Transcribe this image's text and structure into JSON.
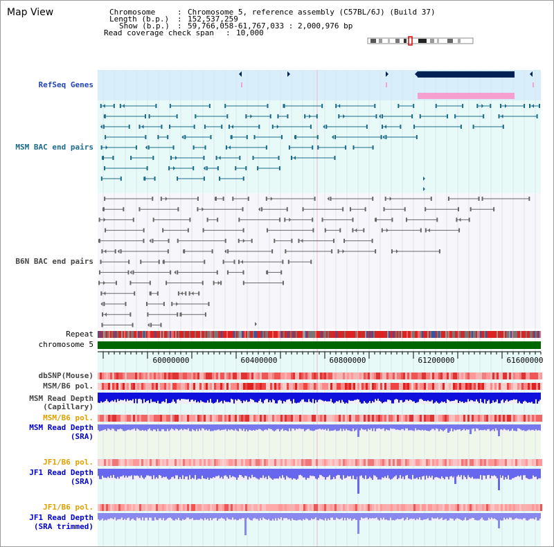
{
  "title": "Map View",
  "header": {
    "chromosome_key": "Chromosome",
    "chromosome_val": "Chromosome 5, reference assembly (C57BL/6J) (Build 37)",
    "length_key": "Length (b.p.)",
    "length_val": "152,537,259",
    "show_key": "Show (b.p.)",
    "show_val": "59,766,058-61,767,033 : 2,000,976 bp",
    "coverage_key": "Read coverage check span",
    "coverage_val": "10,000"
  },
  "tracks": {
    "refseq": "RefSeq Genes",
    "msm_bac": "MSM BAC end pairs",
    "b6n_bac": "B6N BAC end pairs",
    "repeat": "Repeat",
    "chromosome": "chromosome 5",
    "dbsnp": "dbSNP(Mouse)",
    "msm_b6_pol1": "MSM/B6 pol.",
    "msm_depth_cap_1": "MSM Read Depth",
    "msm_depth_cap_2": "(Capillary)",
    "msm_b6_pol2": "MSM/B6 pol.",
    "msm_depth_sra_1": "MSM Read Depth",
    "msm_depth_sra_2": "(SRA)",
    "jf1_b6_pol1": "JF1/B6 pol.",
    "jf1_depth_sra_1": "JF1 Read Depth",
    "jf1_depth_sra_2": "(SRA)",
    "jf1_b6_pol2": "JF1/B6 pol.",
    "jf1_depth_trim_1": "JF1 Read Depth",
    "jf1_depth_trim_2": "(SRA trimmed)"
  },
  "axis_ticks": [
    "60000000",
    "60400000",
    "60800000",
    "61200000",
    "61600000"
  ],
  "colors": {
    "refseq_bg": "#d8eefb",
    "bac_bg": "#e8faf8",
    "gene_dark": "#002255",
    "gene_pink": "#f5a0cf",
    "msm_feature": "#1a6a8a",
    "b6n_feature": "#666666",
    "chromosome_bar": "#006600",
    "depth_cap": "#1010dd",
    "depth_sra": "#7777ee"
  }
}
